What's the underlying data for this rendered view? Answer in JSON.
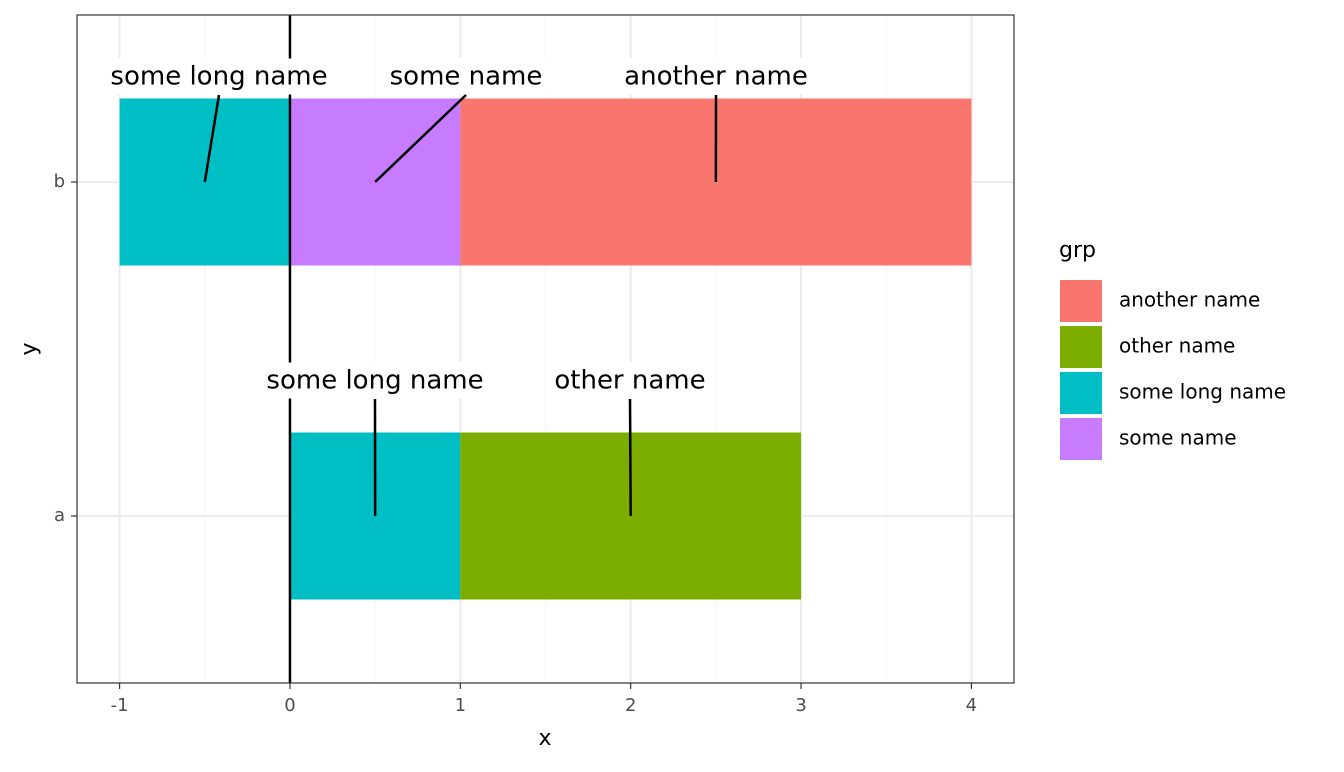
{
  "chart_data": {
    "type": "stacked_barh",
    "categories": [
      "a",
      "b"
    ],
    "series": [
      {
        "name": "another name",
        "color": "#F8766D",
        "values": [
          null,
          3
        ]
      },
      {
        "name": "other name",
        "color": "#7CAE00",
        "values": [
          2,
          null
        ]
      },
      {
        "name": "some long name",
        "color": "#00BFC4",
        "values": [
          1,
          -1
        ]
      },
      {
        "name": "some name",
        "color": "#C77CFF",
        "values": [
          null,
          1
        ]
      }
    ],
    "xlim": [
      -1.25,
      4.25
    ],
    "xticks": [
      -1,
      0,
      1,
      2,
      3,
      4
    ],
    "x_label": "x",
    "y_label": "y",
    "legend_title": "grp",
    "vline": 0,
    "grid": true,
    "legend_position": "right"
  }
}
